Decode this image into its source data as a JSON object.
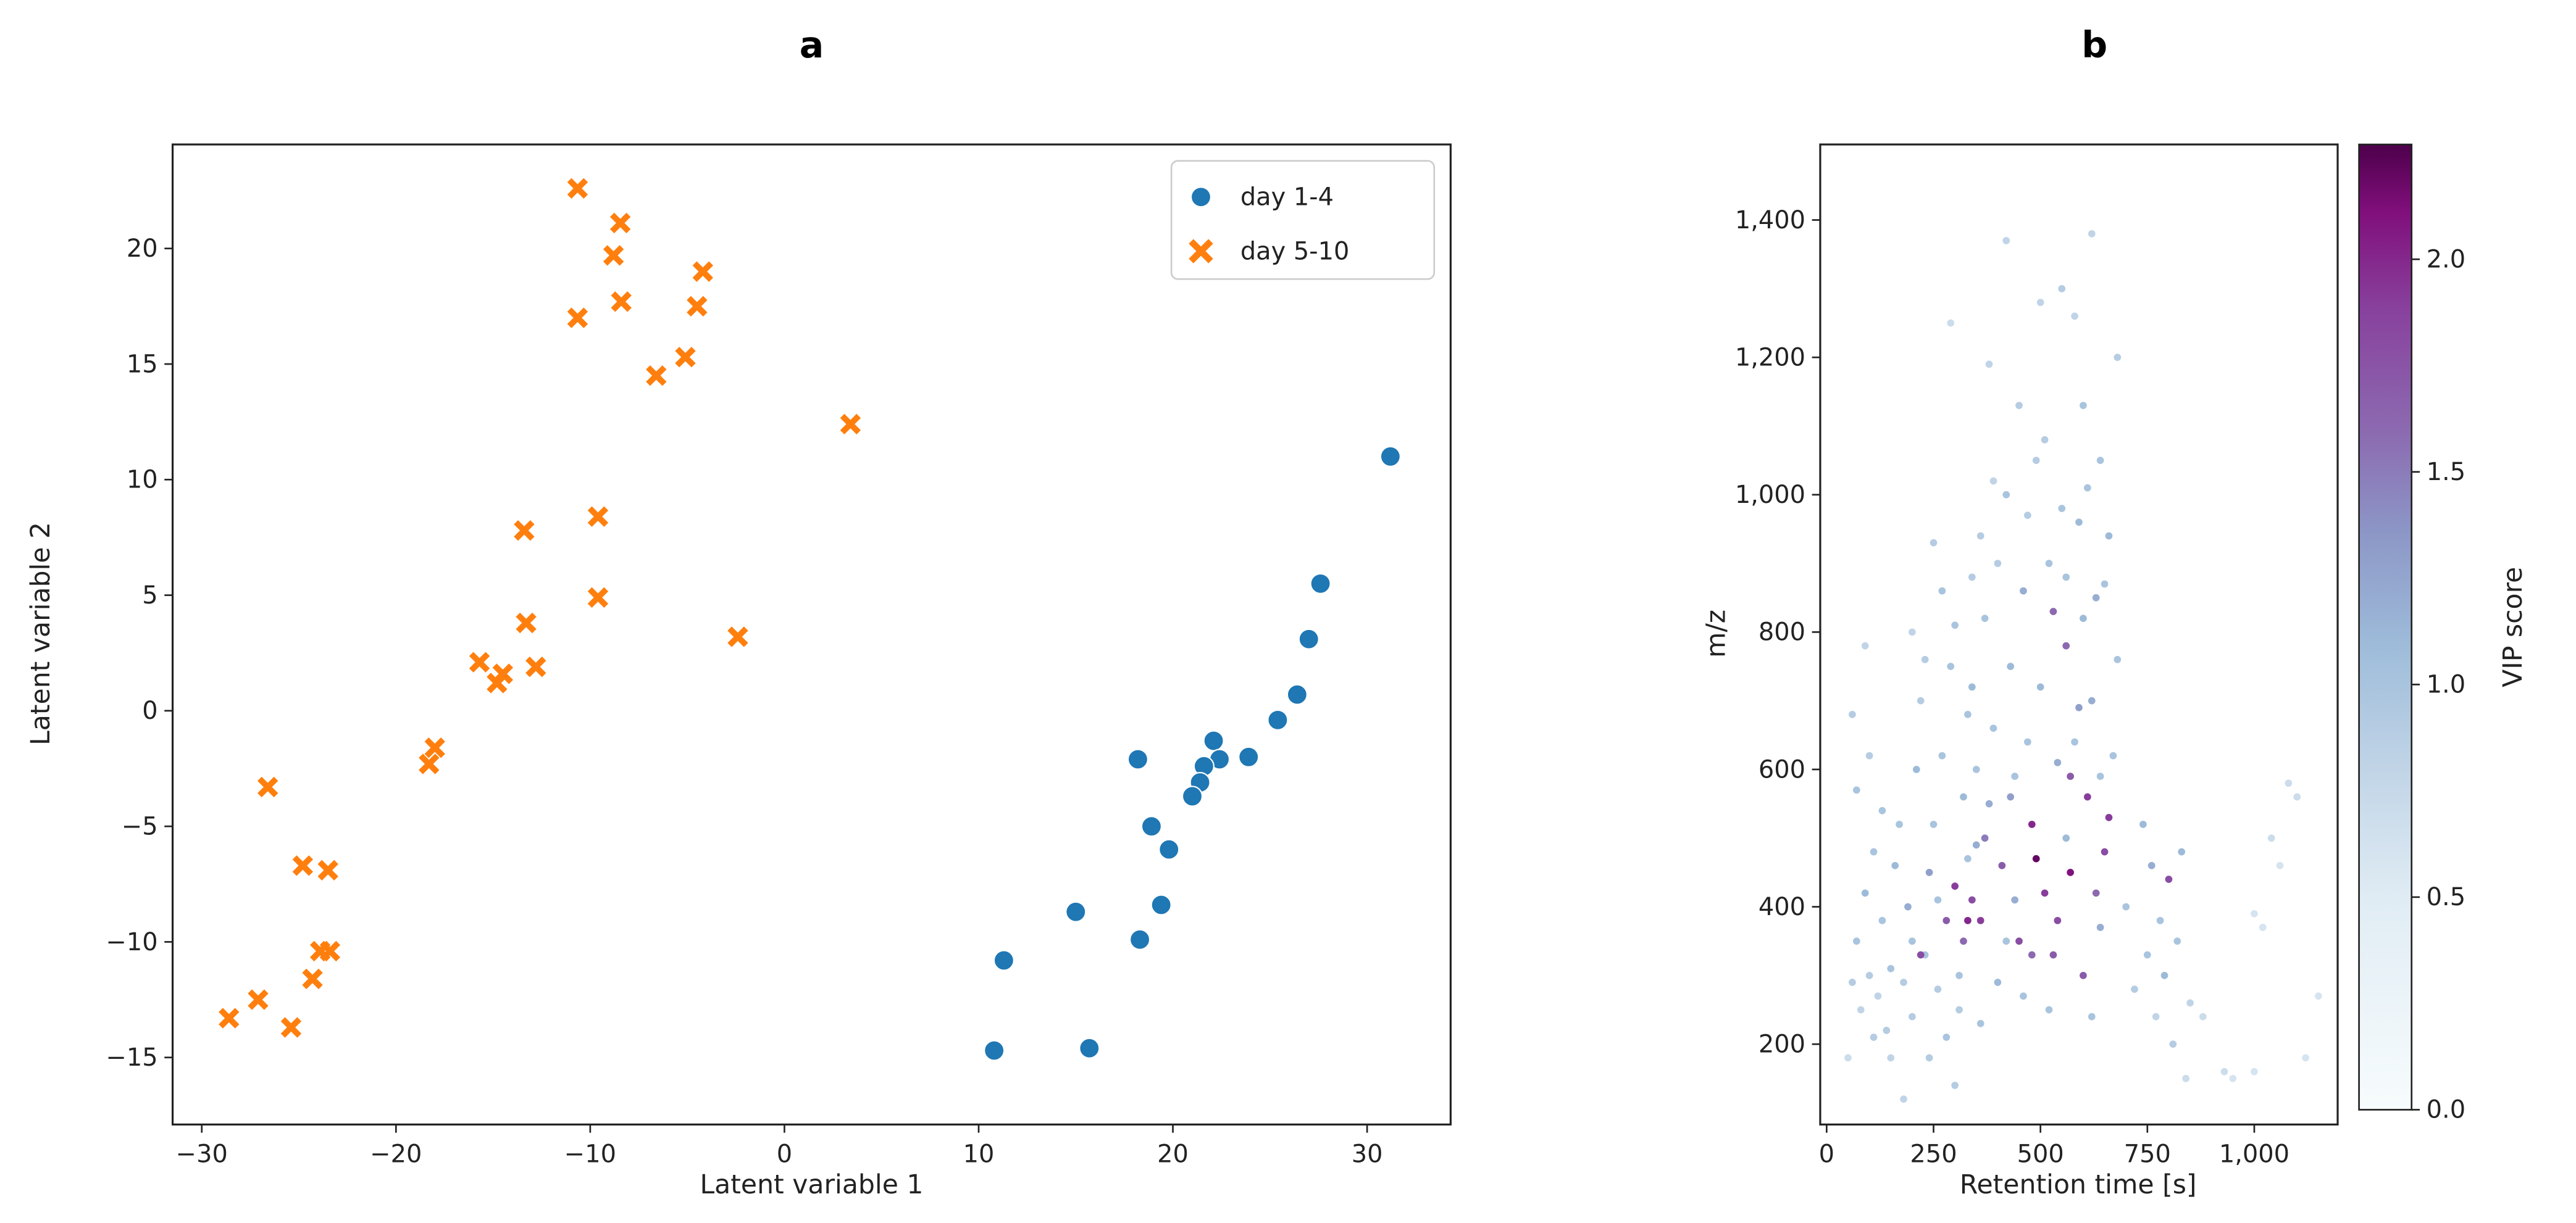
{
  "chart_data": [
    {
      "type": "scatter",
      "title": "a",
      "xlabel": "Latent variable 1",
      "ylabel": "Latent variable 2",
      "xlim": [
        -31.5,
        34.3
      ],
      "ylim": [
        -17.9,
        24.5
      ],
      "xticks": [
        -30,
        -20,
        -10,
        0,
        10,
        20,
        30
      ],
      "yticks": [
        -15,
        -10,
        -5,
        0,
        5,
        10,
        15,
        20
      ],
      "grid": false,
      "legend_position": "top-right",
      "series": [
        {
          "name": "day 1-4",
          "marker": "circle",
          "color": "#1f77b4",
          "points": [
            [
              31.2,
              11.0
            ],
            [
              27.6,
              5.5
            ],
            [
              27.0,
              3.1
            ],
            [
              26.4,
              0.7
            ],
            [
              25.4,
              -0.4
            ],
            [
              23.9,
              -2.0
            ],
            [
              22.1,
              -1.3
            ],
            [
              22.4,
              -2.1
            ],
            [
              21.6,
              -2.4
            ],
            [
              21.4,
              -3.1
            ],
            [
              21.0,
              -3.7
            ],
            [
              18.2,
              -2.1
            ],
            [
              18.9,
              -5.0
            ],
            [
              19.8,
              -6.0
            ],
            [
              19.4,
              -8.4
            ],
            [
              15.0,
              -8.7
            ],
            [
              18.3,
              -9.9
            ],
            [
              11.3,
              -10.8
            ],
            [
              10.8,
              -14.7
            ],
            [
              15.7,
              -14.6
            ]
          ]
        },
        {
          "name": "day 5-10",
          "marker": "x",
          "color": "#ff7f0e",
          "points": [
            [
              -10.65,
              22.6
            ],
            [
              -8.45,
              21.1
            ],
            [
              -8.8,
              19.7
            ],
            [
              -4.2,
              19.0
            ],
            [
              -10.65,
              17.0
            ],
            [
              -8.4,
              17.7
            ],
            [
              -4.5,
              17.5
            ],
            [
              -5.1,
              15.3
            ],
            [
              -6.6,
              14.5
            ],
            [
              3.4,
              12.4
            ],
            [
              -13.4,
              7.8
            ],
            [
              -9.6,
              8.4
            ],
            [
              -9.6,
              4.9
            ],
            [
              -13.3,
              3.8
            ],
            [
              -2.4,
              3.2
            ],
            [
              -15.7,
              2.1
            ],
            [
              -14.5,
              1.6
            ],
            [
              -14.8,
              1.2
            ],
            [
              -12.8,
              1.9
            ],
            [
              -18.0,
              -1.6
            ],
            [
              -18.3,
              -2.3
            ],
            [
              -26.6,
              -3.3
            ],
            [
              -24.8,
              -6.7
            ],
            [
              -23.5,
              -6.9
            ],
            [
              -23.9,
              -10.4
            ],
            [
              -23.4,
              -10.4
            ],
            [
              -24.3,
              -11.6
            ],
            [
              -27.1,
              -12.5
            ],
            [
              -28.6,
              -13.3
            ],
            [
              -25.4,
              -13.7
            ]
          ]
        }
      ]
    },
    {
      "type": "scatter",
      "title": "b",
      "xlabel": "Retention time [s]",
      "ylabel": "m/z",
      "xlim": [
        -15,
        1195
      ],
      "ylim": [
        83,
        1510
      ],
      "xticks": [
        0,
        250,
        500,
        750,
        1000
      ],
      "xtick_labels": [
        "0",
        "250",
        "500",
        "750",
        "1,000"
      ],
      "yticks": [
        200,
        400,
        600,
        800,
        1000,
        1200,
        1400
      ],
      "ytick_labels": [
        "200",
        "400",
        "600",
        "800",
        "1,000",
        "1,200",
        "1,400"
      ],
      "grid": false,
      "colorbar": {
        "label": "VIP score",
        "colormap": "BuPu",
        "range": [
          0,
          2.27
        ],
        "ticks": [
          0,
          0.5,
          1.0,
          1.5,
          2.0
        ],
        "tick_labels": [
          "0.0",
          "0.5",
          "1.0",
          "1.5",
          "2.0"
        ]
      },
      "points_columns": [
        "retention_time",
        "mz",
        "vip"
      ],
      "points": [
        [
          60,
          290,
          0.9
        ],
        [
          70,
          350,
          1.0
        ],
        [
          80,
          250,
          0.8
        ],
        [
          90,
          420,
          1.1
        ],
        [
          100,
          300,
          0.9
        ],
        [
          110,
          480,
          1.0
        ],
        [
          120,
          270,
          0.8
        ],
        [
          130,
          380,
          1.0
        ],
        [
          140,
          220,
          0.9
        ],
        [
          150,
          310,
          1.0
        ],
        [
          60,
          680,
          0.9
        ],
        [
          90,
          780,
          0.8
        ],
        [
          70,
          570,
          1.0
        ],
        [
          50,
          180,
          0.7
        ],
        [
          160,
          460,
          1.1
        ],
        [
          170,
          520,
          1.0
        ],
        [
          180,
          290,
          0.9
        ],
        [
          190,
          400,
          1.2
        ],
        [
          200,
          350,
          1.0
        ],
        [
          210,
          600,
          1.1
        ],
        [
          220,
          700,
          0.9
        ],
        [
          230,
          330,
          1.0
        ],
        [
          240,
          450,
          1.3
        ],
        [
          250,
          520,
          1.0
        ],
        [
          260,
          280,
          0.9
        ],
        [
          270,
          620,
          1.0
        ],
        [
          280,
          380,
          1.7
        ],
        [
          290,
          750,
          1.0
        ],
        [
          300,
          430,
          1.9
        ],
        [
          310,
          300,
          1.0
        ],
        [
          320,
          560,
          1.1
        ],
        [
          330,
          680,
          1.0
        ],
        [
          340,
          410,
          1.8
        ],
        [
          350,
          490,
          1.2
        ],
        [
          250,
          930,
          0.9
        ],
        [
          270,
          860,
          1.0
        ],
        [
          300,
          810,
          1.0
        ],
        [
          310,
          250,
          0.9
        ],
        [
          320,
          350,
          1.6
        ],
        [
          330,
          470,
          1.0
        ],
        [
          340,
          720,
          1.1
        ],
        [
          350,
          600,
          1.0
        ],
        [
          360,
          380,
          1.9
        ],
        [
          370,
          820,
          1.0
        ],
        [
          380,
          550,
          1.2
        ],
        [
          390,
          660,
          1.0
        ],
        [
          400,
          900,
          0.9
        ],
        [
          410,
          460,
          1.7
        ],
        [
          420,
          1000,
          1.0
        ],
        [
          430,
          750,
          1.1
        ],
        [
          440,
          590,
          1.0
        ],
        [
          450,
          350,
          1.8
        ],
        [
          460,
          860,
          1.2
        ],
        [
          470,
          640,
          1.0
        ],
        [
          480,
          520,
          2.0
        ],
        [
          490,
          1050,
          0.9
        ],
        [
          500,
          720,
          1.1
        ],
        [
          510,
          420,
          1.9
        ],
        [
          520,
          900,
          1.0
        ],
        [
          530,
          330,
          1.7
        ],
        [
          540,
          610,
          1.2
        ],
        [
          550,
          980,
          1.0
        ],
        [
          560,
          780,
          1.6
        ],
        [
          570,
          450,
          2.1
        ],
        [
          580,
          1260,
          0.8
        ],
        [
          590,
          690,
          1.3
        ],
        [
          600,
          1130,
          1.0
        ],
        [
          610,
          560,
          1.9
        ],
        [
          620,
          1380,
          0.8
        ],
        [
          630,
          850,
          1.2
        ],
        [
          640,
          1050,
          1.0
        ],
        [
          650,
          480,
          1.8
        ],
        [
          660,
          940,
          1.1
        ],
        [
          670,
          620,
          1.0
        ],
        [
          680,
          1200,
          0.9
        ],
        [
          600,
          300,
          1.7
        ],
        [
          620,
          240,
          1.0
        ],
        [
          640,
          370,
          1.2
        ],
        [
          420,
          1370,
          0.8
        ],
        [
          290,
          1250,
          0.7
        ],
        [
          380,
          1190,
          0.8
        ],
        [
          500,
          1280,
          0.8
        ],
        [
          550,
          1300,
          0.9
        ],
        [
          450,
          1130,
          0.9
        ],
        [
          700,
          400,
          1.0
        ],
        [
          720,
          280,
          0.9
        ],
        [
          740,
          520,
          1.1
        ],
        [
          750,
          330,
          1.0
        ],
        [
          760,
          460,
          1.2
        ],
        [
          770,
          240,
          0.8
        ],
        [
          780,
          380,
          1.0
        ],
        [
          790,
          300,
          1.1
        ],
        [
          800,
          440,
          1.8
        ],
        [
          810,
          200,
          0.9
        ],
        [
          820,
          350,
          1.0
        ],
        [
          830,
          480,
          1.1
        ],
        [
          840,
          150,
          0.7
        ],
        [
          850,
          260,
          0.8
        ],
        [
          880,
          240,
          0.7
        ],
        [
          950,
          150,
          0.6
        ],
        [
          1000,
          160,
          0.6
        ],
        [
          1040,
          500,
          0.7
        ],
        [
          1060,
          460,
          0.6
        ],
        [
          1080,
          580,
          0.7
        ],
        [
          1100,
          560,
          0.7
        ],
        [
          1120,
          180,
          0.6
        ],
        [
          1150,
          270,
          0.6
        ],
        [
          1000,
          390,
          0.6
        ],
        [
          1020,
          370,
          0.6
        ],
        [
          930,
          160,
          0.7
        ],
        [
          180,
          120,
          0.8
        ],
        [
          240,
          180,
          0.9
        ],
        [
          280,
          210,
          1.0
        ],
        [
          300,
          140,
          0.9
        ],
        [
          360,
          230,
          1.0
        ],
        [
          400,
          290,
          1.1
        ],
        [
          420,
          350,
          1.0
        ],
        [
          440,
          410,
          1.2
        ],
        [
          460,
          270,
          1.0
        ],
        [
          480,
          330,
          1.6
        ],
        [
          520,
          250,
          1.0
        ],
        [
          540,
          380,
          1.8
        ],
        [
          560,
          500,
          1.1
        ],
        [
          580,
          640,
          1.0
        ],
        [
          600,
          820,
          1.1
        ],
        [
          620,
          700,
          1.2
        ],
        [
          640,
          590,
          1.0
        ],
        [
          660,
          530,
          1.9
        ],
        [
          680,
          760,
          1.0
        ],
        [
          360,
          940,
          0.9
        ],
        [
          390,
          1020,
          0.8
        ],
        [
          340,
          880,
          0.9
        ],
        [
          470,
          970,
          0.9
        ],
        [
          510,
          1080,
          0.9
        ],
        [
          530,
          830,
          1.6
        ],
        [
          560,
          880,
          1.0
        ],
        [
          590,
          960,
          1.1
        ],
        [
          610,
          1010,
          1.0
        ],
        [
          650,
          870,
          1.0
        ],
        [
          100,
          620,
          0.9
        ],
        [
          130,
          540,
          1.0
        ],
        [
          200,
          800,
          0.8
        ],
        [
          230,
          760,
          0.9
        ],
        [
          260,
          410,
          1.0
        ],
        [
          200,
          240,
          0.9
        ],
        [
          150,
          180,
          0.8
        ],
        [
          110,
          210,
          0.9
        ],
        [
          220,
          330,
          1.8
        ],
        [
          330,
          380,
          2.0
        ],
        [
          370,
          500,
          1.5
        ],
        [
          430,
          560,
          1.3
        ],
        [
          490,
          470,
          2.2
        ],
        [
          570,
          590,
          1.7
        ],
        [
          630,
          420,
          1.6
        ]
      ]
    }
  ]
}
